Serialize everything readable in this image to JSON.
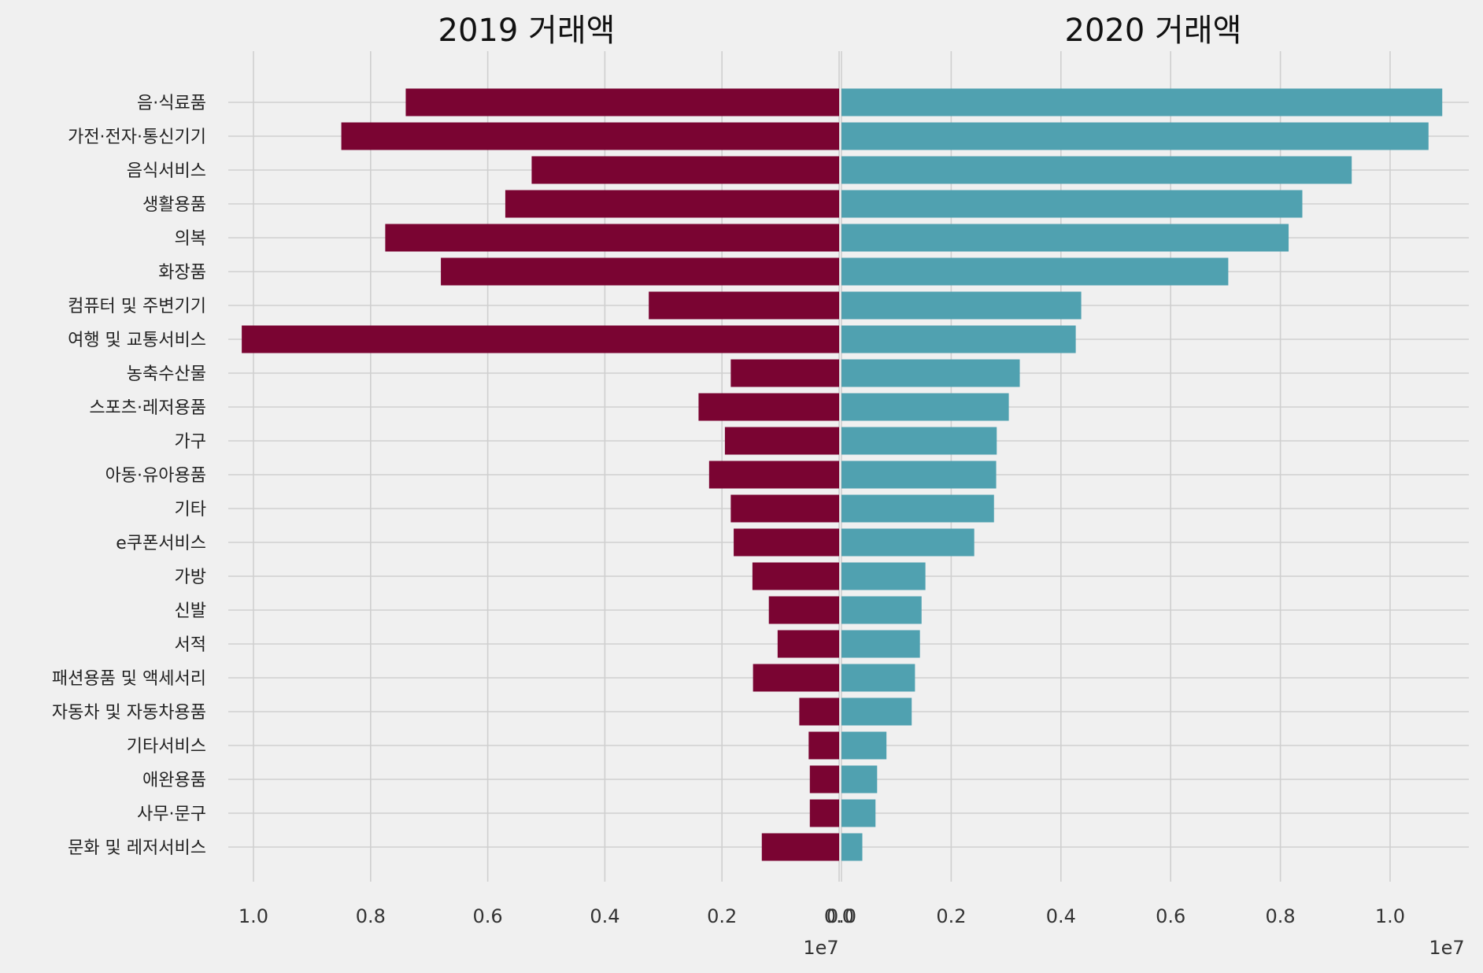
{
  "colors": {
    "left": "#7a0432",
    "right": "#50a1b0",
    "background": "#f0f0f0",
    "grid": "#cfcfcf"
  },
  "chart_data": [
    {
      "type": "bar",
      "orientation": "horizontal",
      "title": "2019 거래액",
      "x_direction": "reversed",
      "xlim": [
        0,
        1.06
      ],
      "xticks": [
        "1.0",
        "0.8",
        "0.6",
        "0.4",
        "0.2",
        "0.0"
      ],
      "x_scale_label": "1e7",
      "grid": true,
      "color": "#7a0432",
      "categories": [
        "음·식료품",
        "가전·전자·통신기기",
        "음식서비스",
        "생활용품",
        "의복",
        "화장품",
        "컴퓨터 및 주변기기",
        "여행 및 교통서비스",
        "농축수산물",
        "스포츠·레저용품",
        "가구",
        "아동·유아용품",
        "기타",
        "e쿠폰서비스",
        "가방",
        "신발",
        "서적",
        "패션용품 및 액세서리",
        "자동차 및 자동차용품",
        "기타서비스",
        "애완용품",
        "사무·문구",
        "문화 및 레저서비스"
      ],
      "values": [
        0.74,
        0.85,
        0.525,
        0.57,
        0.775,
        0.68,
        0.325,
        1.02,
        0.185,
        0.24,
        0.195,
        0.222,
        0.185,
        0.18,
        0.148,
        0.12,
        0.105,
        0.147,
        0.068,
        0.052,
        0.05,
        0.05,
        0.132
      ]
    },
    {
      "type": "bar",
      "orientation": "horizontal",
      "title": "2020 거래액",
      "xlim": [
        0,
        1.1
      ],
      "xticks": [
        "0.0",
        "0.2",
        "0.4",
        "0.6",
        "0.8",
        "1.0"
      ],
      "x_scale_label": "1e7",
      "grid": true,
      "color": "#50a1b0",
      "categories": [
        "음·식료품",
        "가전·전자·통신기기",
        "음식서비스",
        "생활용품",
        "의복",
        "화장품",
        "컴퓨터 및 주변기기",
        "여행 및 교통서비스",
        "농축수산물",
        "스포츠·레저용품",
        "가구",
        "아동·유아용품",
        "기타",
        "e쿠폰서비스",
        "가방",
        "신발",
        "서적",
        "패션용품 및 액세서리",
        "자동차 및 자동차용품",
        "기타서비스",
        "애완용품",
        "사무·문구",
        "문화 및 레저서비스"
      ],
      "values": [
        1.095,
        1.07,
        0.93,
        0.84,
        0.815,
        0.705,
        0.437,
        0.427,
        0.325,
        0.305,
        0.283,
        0.282,
        0.278,
        0.242,
        0.153,
        0.146,
        0.143,
        0.134,
        0.128,
        0.082,
        0.065,
        0.062,
        0.038
      ]
    }
  ]
}
